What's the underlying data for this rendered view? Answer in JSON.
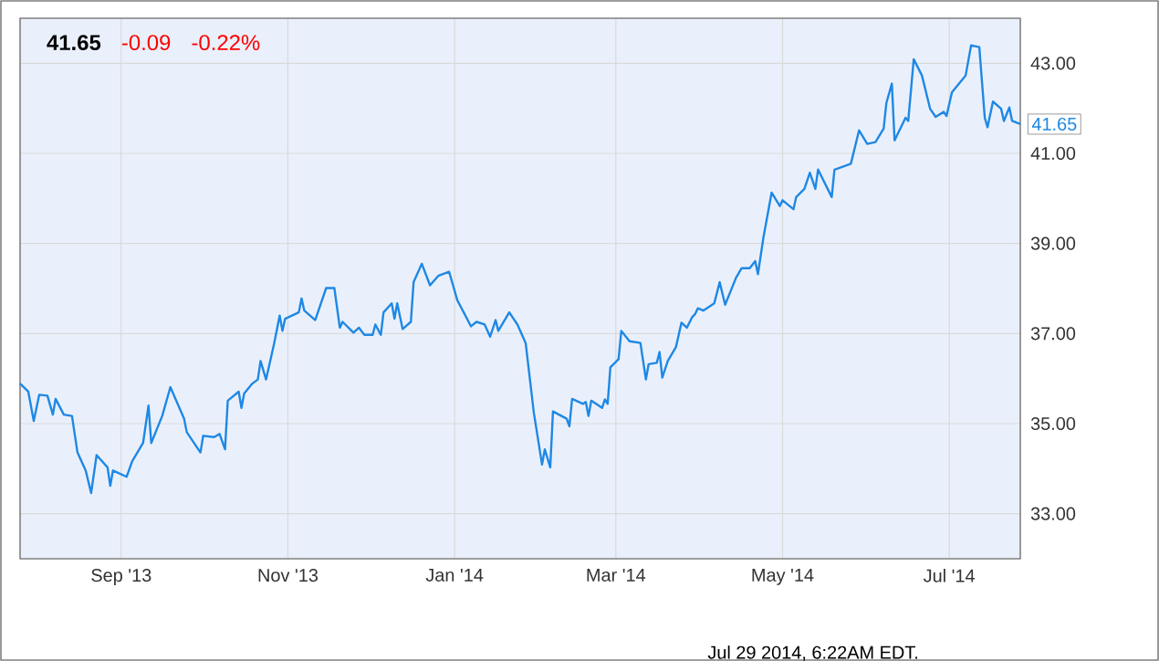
{
  "chart_data": {
    "type": "line",
    "title": "41.65",
    "color": "#1e88e5",
    "grid": true,
    "x": [
      "2013-07-26",
      "2013-07-29",
      "2013-07-31",
      "2013-08-02",
      "2013-08-05",
      "2013-08-07",
      "2013-08-08",
      "2013-08-11",
      "2013-08-14",
      "2013-08-16",
      "2013-08-19",
      "2013-08-21",
      "2013-08-23",
      "2013-08-27",
      "2013-08-28",
      "2013-08-29",
      "2013-09-03",
      "2013-09-05",
      "2013-09-09",
      "2013-09-11",
      "2013-09-12",
      "2013-09-16",
      "2013-09-19",
      "2013-09-24",
      "2013-09-25",
      "2013-09-30",
      "2013-10-01",
      "2013-10-05",
      "2013-10-07",
      "2013-10-09",
      "2013-10-10",
      "2013-10-14",
      "2013-10-15",
      "2013-10-16",
      "2013-10-19",
      "2013-10-21",
      "2013-10-22",
      "2013-10-24",
      "2013-10-27",
      "2013-10-29",
      "2013-10-30",
      "2013-10-31",
      "2013-11-05",
      "2013-11-06",
      "2013-11-07",
      "2013-11-11",
      "2013-11-15",
      "2013-11-18",
      "2013-11-20",
      "2013-11-21",
      "2013-11-25",
      "2013-11-27",
      "2013-11-29",
      "2013-12-02",
      "2013-12-03",
      "2013-12-05",
      "2013-12-06",
      "2013-12-09",
      "2013-12-10",
      "2013-12-11",
      "2013-12-13",
      "2013-12-16",
      "2013-12-17",
      "2013-12-20",
      "2013-12-23",
      "2013-12-26",
      "2013-12-30",
      "2014-01-02",
      "2014-01-07",
      "2014-01-09",
      "2014-01-12",
      "2014-01-14",
      "2014-01-16",
      "2014-01-17",
      "2014-01-21",
      "2014-01-24",
      "2014-01-27",
      "2014-01-30",
      "2014-02-02",
      "2014-02-03",
      "2014-02-05",
      "2014-02-06",
      "2014-02-11",
      "2014-02-12",
      "2014-02-13",
      "2014-02-17",
      "2014-02-18",
      "2014-02-19",
      "2014-02-20",
      "2014-02-24",
      "2014-02-25",
      "2014-02-26",
      "2014-02-27",
      "2014-03-02",
      "2014-03-03",
      "2014-03-06",
      "2014-03-10",
      "2014-03-12",
      "2014-03-13",
      "2014-03-16",
      "2014-03-17",
      "2014-03-18",
      "2014-03-20",
      "2014-03-23",
      "2014-03-25",
      "2014-03-27",
      "2014-03-29",
      "2014-03-30",
      "2014-03-31",
      "2014-04-02",
      "2014-04-06",
      "2014-04-08",
      "2014-04-10",
      "2014-04-14",
      "2014-04-16",
      "2014-04-19",
      "2014-04-21",
      "2014-04-22",
      "2014-04-24",
      "2014-04-27",
      "2014-04-30",
      "2014-05-01",
      "2014-05-05",
      "2014-05-06",
      "2014-05-09",
      "2014-05-11",
      "2014-05-13",
      "2014-05-14",
      "2014-05-19",
      "2014-05-20",
      "2014-05-26",
      "2014-05-29",
      "2014-06-01",
      "2014-06-04",
      "2014-06-07",
      "2014-06-08",
      "2014-06-10",
      "2014-06-11",
      "2014-06-15",
      "2014-06-16",
      "2014-06-18",
      "2014-06-21",
      "2014-06-24",
      "2014-06-26",
      "2014-06-29",
      "2014-06-30",
      "2014-07-02",
      "2014-07-07",
      "2014-07-09",
      "2014-07-12",
      "2014-07-14",
      "2014-07-15",
      "2014-07-17",
      "2014-07-20",
      "2014-07-21",
      "2014-07-23",
      "2014-07-24",
      "2014-07-27"
    ],
    "values": [
      35.89,
      35.71,
      35.06,
      35.64,
      35.62,
      35.2,
      35.55,
      35.2,
      35.17,
      34.36,
      33.96,
      33.46,
      34.3,
      34.03,
      33.62,
      33.96,
      33.82,
      34.16,
      34.57,
      35.4,
      34.57,
      35.17,
      35.81,
      35.11,
      34.81,
      34.36,
      34.73,
      34.7,
      34.77,
      34.43,
      35.51,
      35.71,
      35.35,
      35.67,
      35.89,
      35.98,
      36.39,
      35.98,
      36.79,
      37.4,
      37.06,
      37.33,
      37.47,
      37.78,
      37.51,
      37.3,
      38.01,
      38.01,
      37.13,
      37.26,
      37.02,
      37.13,
      36.97,
      36.97,
      37.2,
      36.97,
      37.47,
      37.67,
      37.33,
      37.67,
      37.1,
      37.26,
      38.14,
      38.55,
      38.07,
      38.28,
      38.37,
      37.74,
      37.16,
      37.26,
      37.2,
      36.93,
      37.3,
      37.06,
      37.47,
      37.2,
      36.79,
      35.24,
      34.09,
      34.43,
      34.03,
      35.27,
      35.11,
      34.94,
      35.55,
      35.44,
      35.48,
      35.17,
      35.51,
      35.35,
      35.54,
      35.44,
      36.25,
      36.43,
      37.06,
      36.83,
      36.79,
      35.98,
      36.32,
      36.35,
      36.59,
      36.02,
      36.39,
      36.7,
      37.24,
      37.13,
      37.37,
      37.43,
      37.56,
      37.51,
      37.67,
      38.14,
      37.64,
      38.24,
      38.45,
      38.45,
      38.61,
      38.32,
      39.13,
      40.13,
      39.83,
      39.96,
      39.76,
      40.03,
      40.21,
      40.57,
      40.21,
      40.64,
      40.03,
      40.64,
      40.77,
      41.51,
      41.21,
      41.25,
      41.55,
      42.12,
      42.55,
      41.29,
      41.79,
      41.72,
      43.09,
      42.73,
      41.99,
      41.81,
      41.92,
      41.83,
      42.36,
      42.73,
      43.4,
      43.36,
      41.79,
      41.58,
      42.15,
      41.99,
      41.72,
      42.02,
      41.72,
      41.65
    ],
    "xlim": [
      "2013-07-26",
      "2014-07-27"
    ],
    "ylim": [
      32,
      44
    ],
    "xticks": [
      {
        "value": "2013-09-01",
        "label": "Sep '13"
      },
      {
        "value": "2013-11-01",
        "label": "Nov '13"
      },
      {
        "value": "2014-01-01",
        "label": "Jan '14"
      },
      {
        "value": "2014-03-01",
        "label": "Mar '14"
      },
      {
        "value": "2014-05-01",
        "label": "May '14"
      },
      {
        "value": "2014-07-01",
        "label": "Jul '14"
      }
    ],
    "yticks": [
      {
        "value": 33,
        "label": "33.00"
      },
      {
        "value": 35,
        "label": "35.00"
      },
      {
        "value": 37,
        "label": "37.00"
      },
      {
        "value": 39,
        "label": "39.00"
      },
      {
        "value": 41,
        "label": "41.00"
      },
      {
        "value": 43,
        "label": "43.00"
      }
    ],
    "annotations": [
      "-0.09",
      "-0.22%",
      {
        "text": "41.65",
        "x": "2014-07-27",
        "y": 41.65
      },
      "Jul 29 2014, 6:22AM EDT."
    ]
  }
}
